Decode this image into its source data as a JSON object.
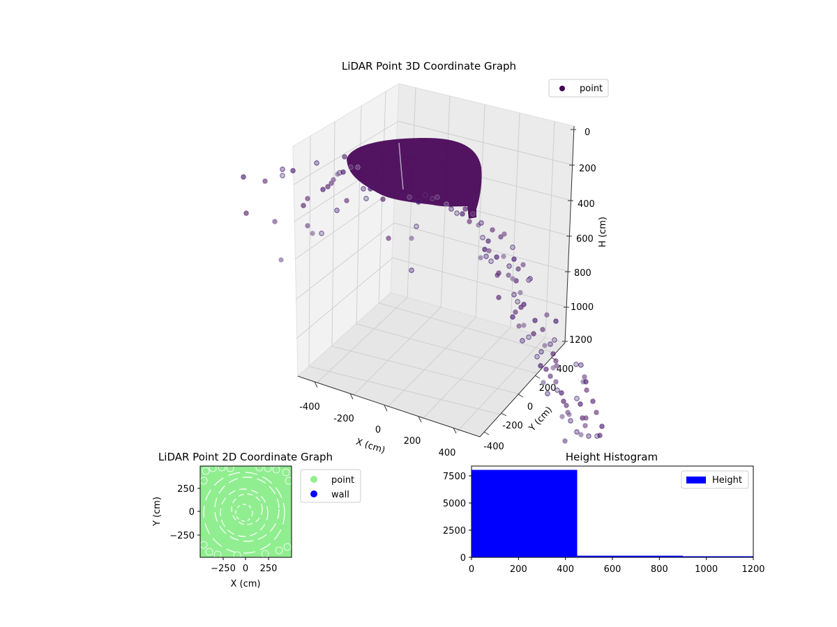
{
  "chart_data": [
    {
      "type": "scatter",
      "projection": "3d",
      "title": "LiDAR Point 3D Coordinate Graph",
      "xlabel": "X (cm)",
      "ylabel": "Y (cm)",
      "zlabel": "H (cm)",
      "xticks": [
        "-400",
        "-200",
        "0",
        "200",
        "400"
      ],
      "yticks": [
        "-400",
        "-200",
        "0",
        "200",
        "400"
      ],
      "zticks": [
        "0",
        "200",
        "400",
        "600",
        "800",
        "1000",
        "1200"
      ],
      "zlim": [
        1200,
        0
      ],
      "z_inverted": true,
      "legend": {
        "position": "upper-right",
        "entries": [
          {
            "label": "point",
            "color": "#440154"
          }
        ]
      },
      "series": [
        {
          "name": "point",
          "color": "#440154",
          "colormap": "viridis",
          "dense_cluster_height_range": [
            0,
            450
          ]
        }
      ],
      "grid": true
    },
    {
      "type": "scatter",
      "title": "LiDAR Point 2D Coordinate Graph",
      "xlabel": "X (cm)",
      "ylabel": "Y (cm)",
      "xticks": [
        "−250",
        "0",
        "250"
      ],
      "yticks": [
        "250",
        "0",
        "−250"
      ],
      "xlim": [
        -500,
        500
      ],
      "ylim": [
        -500,
        500
      ],
      "legend": {
        "position": "outside-right",
        "entries": [
          {
            "label": "point",
            "color": "#90ee90"
          },
          {
            "label": "wall",
            "color": "#0000ff"
          }
        ]
      },
      "series": [
        {
          "name": "point",
          "color": "#90ee90",
          "pattern": "concentric rings"
        },
        {
          "name": "wall",
          "color": "#0000ff"
        }
      ],
      "grid": false
    },
    {
      "type": "bar",
      "title": "Height Histogram",
      "xticks": [
        "0",
        "200",
        "400",
        "600",
        "800",
        "1000",
        "1200"
      ],
      "yticks": [
        "0",
        "2500",
        "5000",
        "7500"
      ],
      "xlim": [
        0,
        1200
      ],
      "ylim": [
        0,
        8400
      ],
      "bins": [
        {
          "start": 0,
          "end": 450,
          "count": 8050
        },
        {
          "start": 450,
          "end": 900,
          "count": 150
        },
        {
          "start": 900,
          "end": 1200,
          "count": 100
        }
      ],
      "color": "#0000ff",
      "legend": {
        "position": "upper-right",
        "entries": [
          {
            "label": "Height",
            "color": "#0000ff"
          }
        ]
      },
      "grid": false
    }
  ]
}
